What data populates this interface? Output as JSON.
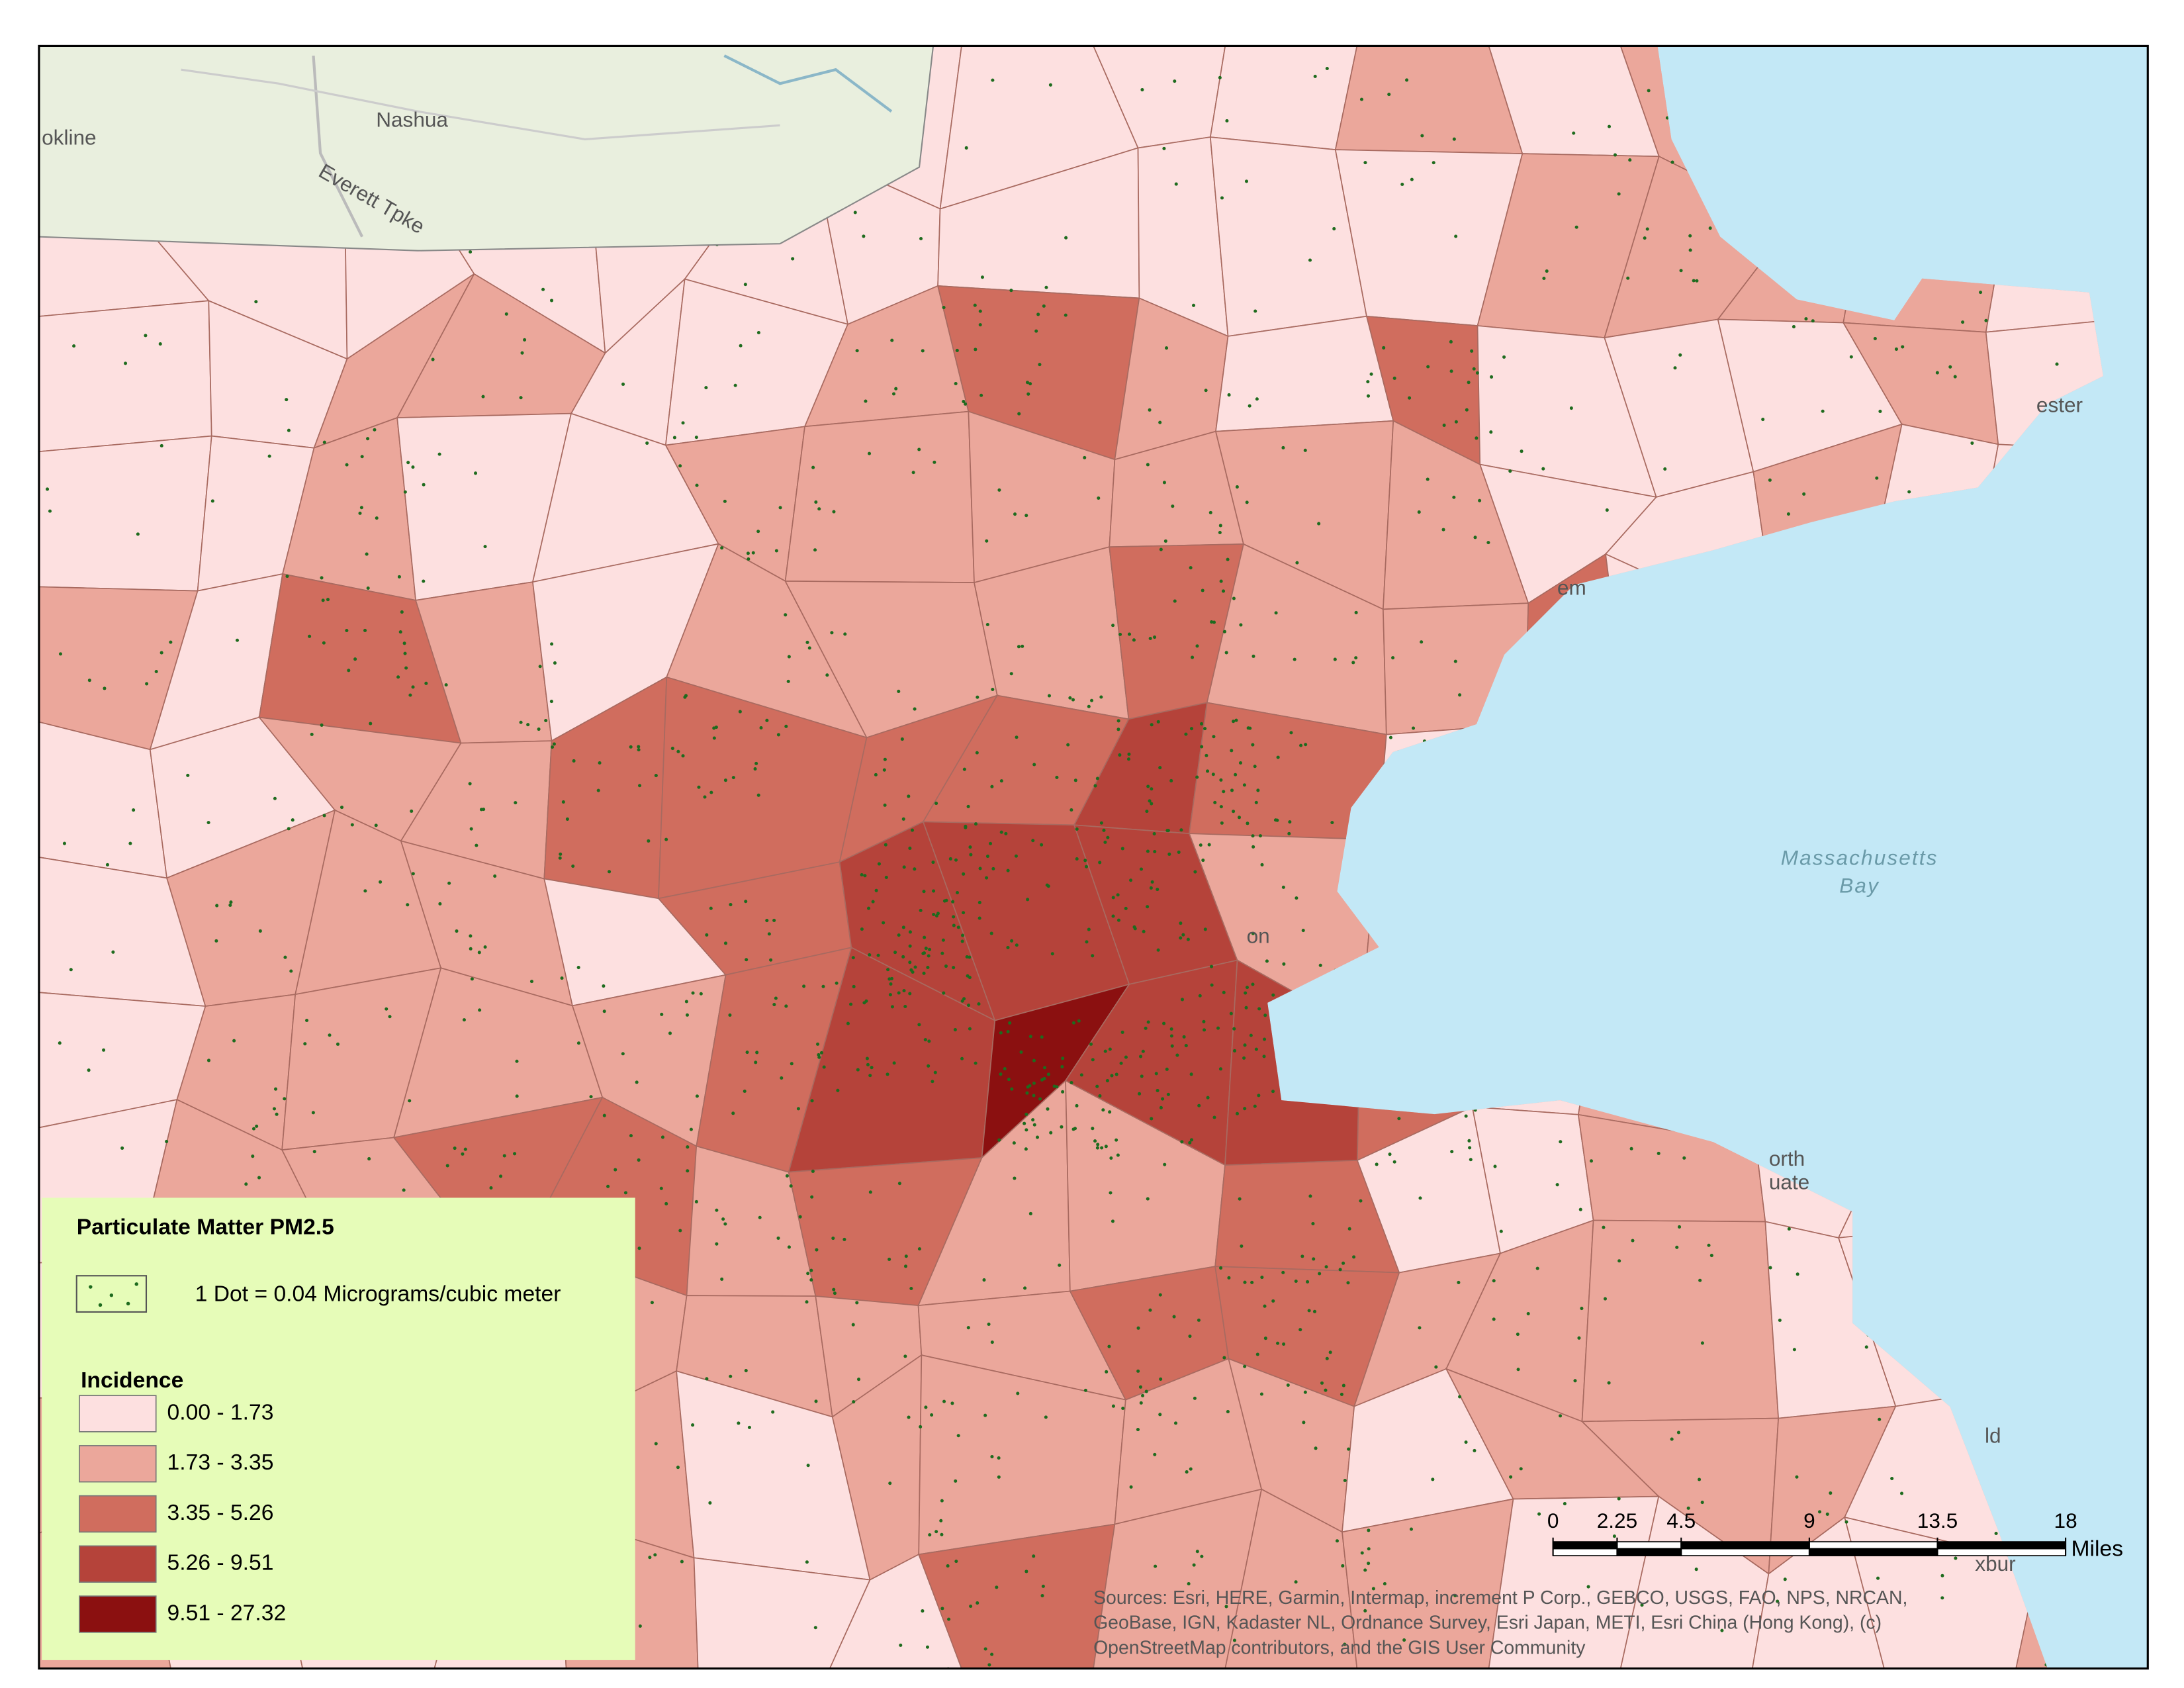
{
  "map": {
    "places": [
      {
        "label": "Nashua"
      },
      {
        "label": "Everett Tpke"
      },
      {
        "label": "okline"
      },
      {
        "label": "Massachusetts"
      },
      {
        "label": "Bay"
      },
      {
        "label": "ester"
      },
      {
        "label": "em"
      },
      {
        "label": "on"
      },
      {
        "label": "orth"
      },
      {
        "label": "uate"
      },
      {
        "label": "ld"
      },
      {
        "label": "xbur"
      }
    ],
    "legend": {
      "title": "Particulate Matter PM2.5",
      "dot_label": "1 Dot = 0.04 Micrograms/cubic meter",
      "dot_color": "#1e6b1e",
      "class_title": "Incidence",
      "classes": [
        {
          "label": "0.00 - 1.73",
          "color": "#fde0e0"
        },
        {
          "label": "1.73 - 3.35",
          "color": "#eba79b"
        },
        {
          "label": "3.35 - 5.26",
          "color": "#d06d5e"
        },
        {
          "label": "5.26 - 9.51",
          "color": "#b5433a"
        },
        {
          "label": "9.51 - 27.32",
          "color": "#8b1010"
        }
      ]
    },
    "scale_bar": {
      "ticks": [
        0,
        2.25,
        4.5,
        9,
        13.5,
        18
      ],
      "unit": "Miles"
    },
    "attribution": [
      "Sources: Esri, HERE, Garmin, Intermap, increment P Corp., GEBCO, USGS, FAO, NPS, NRCAN,",
      "GeoBase, IGN, Kadaster NL, Ordnance Survey, Esri Japan, METI, Esri China (Hong Kong), (c)",
      "OpenStreetMap contributors, and the GIS User Community"
    ]
  }
}
